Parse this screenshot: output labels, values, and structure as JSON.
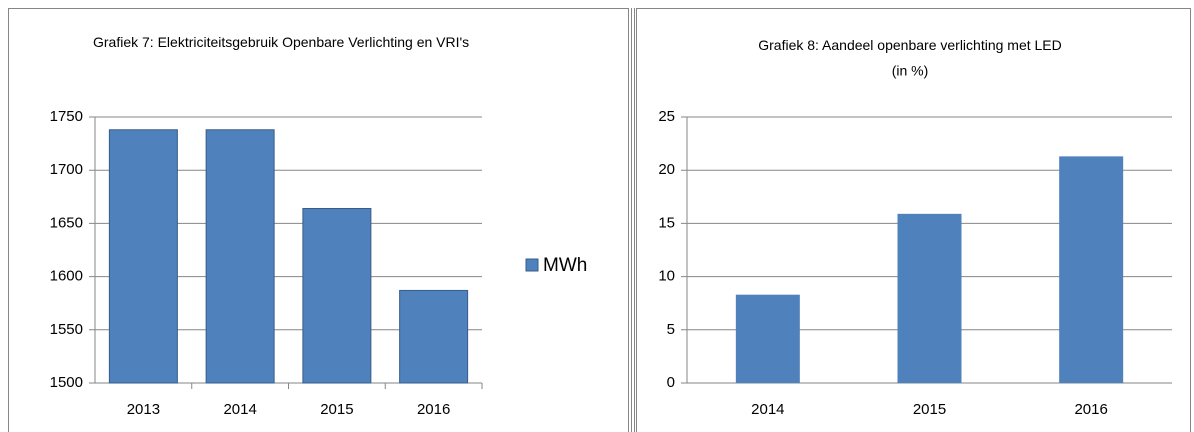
{
  "chart_data": [
    {
      "type": "bar",
      "title": "Grafiek 7: Elektriciteitsgebruik Openbare Verlichting en VRI's",
      "categories": [
        "2013",
        "2014",
        "2015",
        "2016"
      ],
      "series": [
        {
          "name": "MWh",
          "color": "#4f81bd",
          "edgecolor": "#385d8a",
          "values": [
            1738,
            1738,
            1664,
            1587
          ]
        }
      ],
      "ylim": [
        1500,
        1750
      ],
      "yticks": [
        1500,
        1550,
        1600,
        1650,
        1700,
        1750
      ],
      "grid": true,
      "legend": "right"
    },
    {
      "type": "bar",
      "title": "Grafiek 8: Aandeel openbare verlichting met LED",
      "subtitle": "(in %)",
      "categories": [
        "2014",
        "2015",
        "2016"
      ],
      "values": [
        8.3,
        15.9,
        21.3
      ],
      "color": "#4f81bd",
      "ylim": [
        0,
        25
      ],
      "yticks": [
        0,
        5,
        10,
        15,
        20,
        25
      ],
      "grid": true
    }
  ]
}
